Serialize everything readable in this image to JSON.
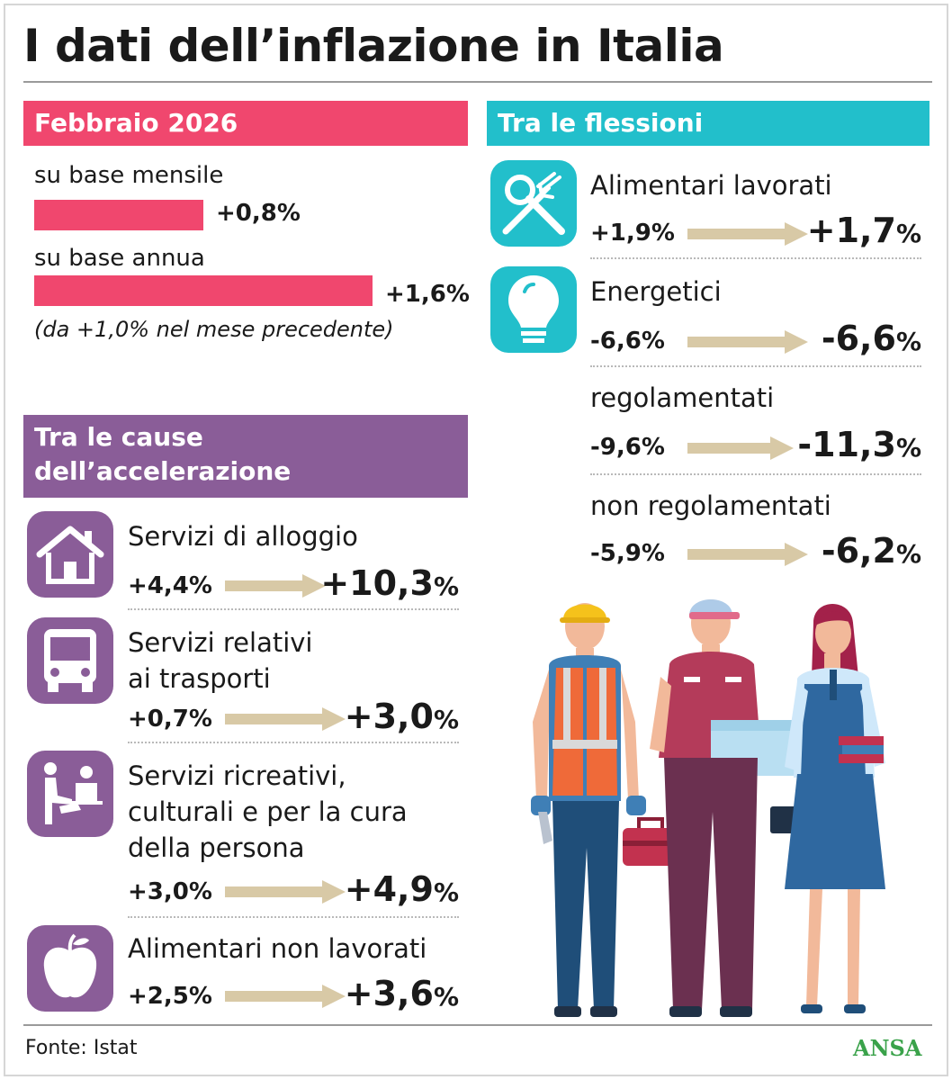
{
  "title": "I dati dell’inflazione in Italia",
  "colors": {
    "pink": "#f0476e",
    "teal": "#22bfcb",
    "purple": "#8a5d98",
    "arrow": "#d8c9a6",
    "brand": "#3aa24a"
  },
  "month": {
    "header": "Febbraio 2026",
    "monthly_label": "su base mensile",
    "monthly_value": "+0,8%",
    "monthly_pct": 0.8,
    "annual_label": "su base annua",
    "annual_value": "+1,6%",
    "annual_pct": 1.6,
    "note": "(da +1,0% nel mese precedente)"
  },
  "causes": {
    "header_line1": "Tra le cause",
    "header_line2": "dell’accelerazione",
    "items": [
      {
        "icon": "house-icon",
        "lines": [
          "Servizi di alloggio"
        ],
        "from": "+4,4%",
        "to_num": "+10,3",
        "to_unit": "%"
      },
      {
        "icon": "bus-icon",
        "lines": [
          "Servizi relativi",
          "ai trasporti"
        ],
        "from": "+0,7%",
        "to_num": "+3,0",
        "to_unit": "%"
      },
      {
        "icon": "personal-care-icon",
        "lines": [
          "Servizi ricreativi,",
          "culturali e per la cura",
          "della persona"
        ],
        "from": "+3,0%",
        "to_num": "+4,9",
        "to_unit": "%"
      },
      {
        "icon": "apple-icon",
        "lines": [
          "Alimentari non lavorati"
        ],
        "from": "+2,5%",
        "to_num": "+3,6",
        "to_unit": "%"
      }
    ]
  },
  "declines": {
    "header": "Tra le flessioni",
    "items": [
      {
        "icon": "cutlery-icon",
        "label": "Alimentari lavorati",
        "from": "+1,9%",
        "to_num": "+1,7",
        "to_unit": "%"
      },
      {
        "icon": "lightbulb-icon",
        "label": "Energetici",
        "from": "-6,6%",
        "to_num": "-6,6",
        "to_unit": "%"
      },
      {
        "icon": "",
        "label": "regolamentati",
        "from": "-9,6%",
        "to_num": "-11,3",
        "to_unit": "%"
      },
      {
        "icon": "",
        "label": "non regolamentati",
        "from": "-5,9%",
        "to_num": "-6,2",
        "to_unit": "%"
      }
    ]
  },
  "footer": {
    "source": "Fonte: Istat",
    "brand": "ANSA"
  }
}
